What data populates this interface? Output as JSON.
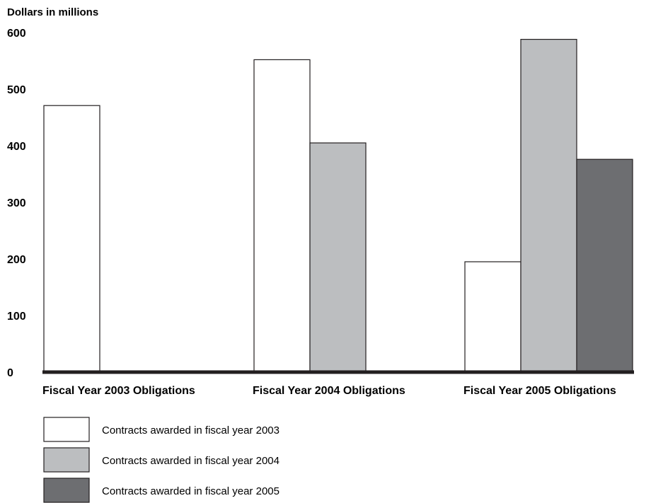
{
  "chart_data": {
    "type": "bar",
    "title": "",
    "ylabel": "Dollars in millions",
    "xlabel": "",
    "ylim": [
      0,
      600
    ],
    "yticks": [
      0,
      100,
      200,
      300,
      400,
      500,
      600
    ],
    "grid": false,
    "legend_position": "bottom-left",
    "categories": [
      "Fiscal Year 2003 Obligations",
      "Fiscal Year 2004 Obligations",
      "Fiscal Year 2005 Obligations"
    ],
    "series": [
      {
        "name": "Contracts awarded in fiscal year 2003",
        "color": "#ffffff",
        "values": [
          471,
          552,
          195
        ]
      },
      {
        "name": "Contracts awarded in fiscal year 2004",
        "color": "#bcbec0",
        "values": [
          null,
          405,
          588
        ]
      },
      {
        "name": "Contracts awarded in fiscal year 2005",
        "color": "#6d6e71",
        "values": [
          null,
          null,
          376
        ]
      }
    ]
  }
}
